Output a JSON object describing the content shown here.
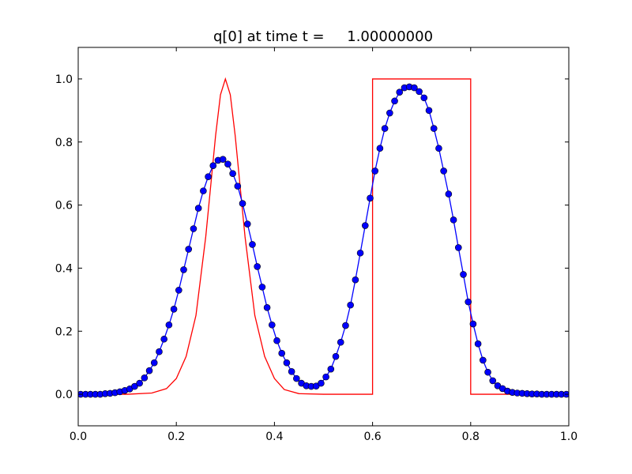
{
  "chart_data": {
    "type": "line",
    "title": "q[0] at time t =     1.00000000",
    "xlabel": "",
    "ylabel": "",
    "xlim": [
      0.0,
      1.0
    ],
    "ylim": [
      -0.1,
      1.1
    ],
    "xticks": [
      "0.0",
      "0.2",
      "0.4",
      "0.6",
      "0.8",
      "1.0"
    ],
    "yticks": [
      "0.0",
      "0.2",
      "0.4",
      "0.6",
      "0.8",
      "1.0"
    ],
    "grid": false,
    "legend": "none",
    "series": [
      {
        "color": "#ff0000",
        "style": "line",
        "x": [
          0.0,
          0.1,
          0.15,
          0.18,
          0.2,
          0.22,
          0.24,
          0.26,
          0.28,
          0.29,
          0.3,
          0.31,
          0.32,
          0.34,
          0.36,
          0.38,
          0.4,
          0.42,
          0.45,
          0.5,
          0.55,
          0.6,
          0.6,
          0.8,
          0.8,
          1.0
        ],
        "y": [
          0.0,
          0.0,
          0.004,
          0.018,
          0.05,
          0.12,
          0.25,
          0.5,
          0.82,
          0.95,
          1.0,
          0.95,
          0.82,
          0.5,
          0.25,
          0.12,
          0.05,
          0.015,
          0.002,
          0.0,
          0.0,
          0.0,
          1.0,
          1.0,
          0.0,
          0.0
        ]
      },
      {
        "color": "#0000ff",
        "style": "line-marker",
        "x": [
          0.005,
          0.015,
          0.025,
          0.035,
          0.045,
          0.055,
          0.065,
          0.075,
          0.085,
          0.095,
          0.105,
          0.115,
          0.125,
          0.135,
          0.145,
          0.155,
          0.165,
          0.175,
          0.185,
          0.195,
          0.205,
          0.215,
          0.225,
          0.235,
          0.245,
          0.255,
          0.265,
          0.275,
          0.285,
          0.295,
          0.305,
          0.315,
          0.325,
          0.335,
          0.345,
          0.355,
          0.365,
          0.375,
          0.385,
          0.395,
          0.405,
          0.415,
          0.425,
          0.435,
          0.445,
          0.455,
          0.465,
          0.475,
          0.485,
          0.495,
          0.505,
          0.515,
          0.525,
          0.535,
          0.545,
          0.555,
          0.565,
          0.575,
          0.585,
          0.595,
          0.605,
          0.615,
          0.625,
          0.635,
          0.645,
          0.655,
          0.665,
          0.675,
          0.685,
          0.695,
          0.705,
          0.715,
          0.725,
          0.735,
          0.745,
          0.755,
          0.765,
          0.775,
          0.785,
          0.795,
          0.805,
          0.815,
          0.825,
          0.835,
          0.845,
          0.855,
          0.865,
          0.875,
          0.885,
          0.895,
          0.905,
          0.915,
          0.925,
          0.935,
          0.945,
          0.955,
          0.965,
          0.975,
          0.985,
          0.995
        ],
        "y": [
          0.0,
          0.0,
          0.0,
          0.0,
          0.0,
          0.002,
          0.003,
          0.005,
          0.008,
          0.012,
          0.017,
          0.025,
          0.035,
          0.052,
          0.075,
          0.1,
          0.135,
          0.175,
          0.22,
          0.27,
          0.33,
          0.395,
          0.46,
          0.525,
          0.59,
          0.645,
          0.69,
          0.725,
          0.742,
          0.745,
          0.73,
          0.7,
          0.66,
          0.605,
          0.54,
          0.475,
          0.405,
          0.34,
          0.275,
          0.22,
          0.17,
          0.13,
          0.1,
          0.072,
          0.05,
          0.035,
          0.027,
          0.025,
          0.026,
          0.035,
          0.055,
          0.08,
          0.12,
          0.165,
          0.218,
          0.283,
          0.363,
          0.448,
          0.535,
          0.622,
          0.708,
          0.78,
          0.843,
          0.892,
          0.93,
          0.958,
          0.972,
          0.975,
          0.972,
          0.96,
          0.94,
          0.9,
          0.843,
          0.78,
          0.708,
          0.635,
          0.553,
          0.465,
          0.38,
          0.293,
          0.223,
          0.16,
          0.108,
          0.07,
          0.043,
          0.027,
          0.018,
          0.01,
          0.006,
          0.004,
          0.003,
          0.002,
          0.001,
          0.001,
          0.0,
          0.0,
          0.0,
          0.0,
          0.0,
          0.0
        ]
      }
    ]
  }
}
